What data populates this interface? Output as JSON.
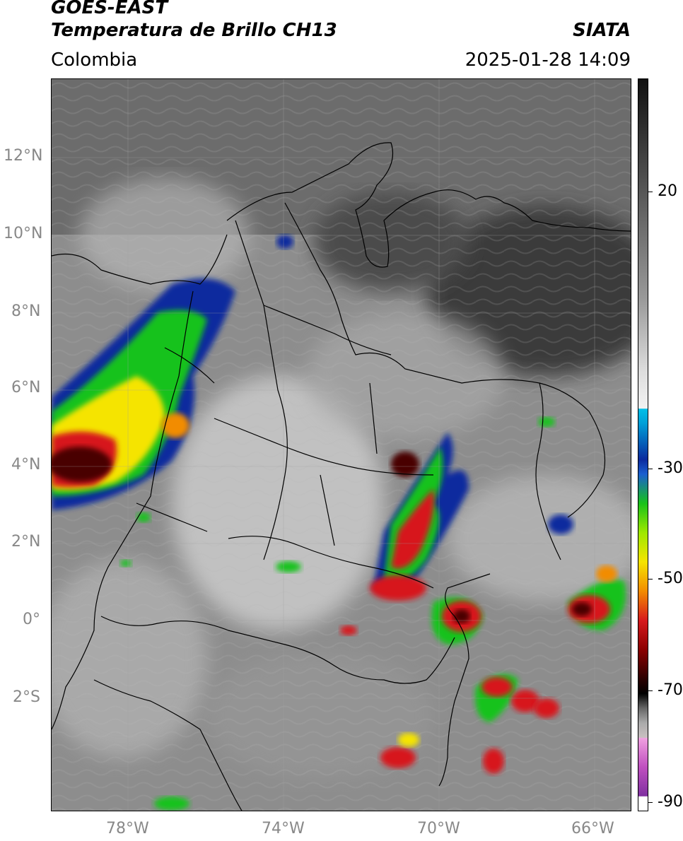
{
  "header": {
    "satellite": "GOES-EAST",
    "product": "Temperatura de Brillo CH13",
    "region": "Colombia",
    "agency": "SIATA",
    "timestamp": "2025-01-28 14:09"
  },
  "map": {
    "lat_ticks": [
      {
        "label": "12°N",
        "lat": 12
      },
      {
        "label": "10°N",
        "lat": 10
      },
      {
        "label": "8°N",
        "lat": 8
      },
      {
        "label": "6°N",
        "lat": 6
      },
      {
        "label": "4°N",
        "lat": 4
      },
      {
        "label": "2°N",
        "lat": 2
      },
      {
        "label": "0°",
        "lat": 0
      },
      {
        "label": "2°S",
        "lat": -2
      }
    ],
    "lon_ticks": [
      {
        "label": "78°W",
        "lon": -78
      },
      {
        "label": "74°W",
        "lon": -74
      },
      {
        "label": "70°W",
        "lon": -70
      },
      {
        "label": "66°W",
        "lon": -66
      }
    ],
    "extent": {
      "lon_min": -80,
      "lon_max": -65,
      "lat_min": -4.9,
      "lat_max": 14
    }
  },
  "colorbar": {
    "ticks": [
      {
        "label": "20",
        "value": 20
      },
      {
        "label": "-30",
        "value": -30
      },
      {
        "label": "-50",
        "value": -50
      },
      {
        "label": "-70",
        "value": -70
      },
      {
        "label": "-90",
        "value": -90
      }
    ],
    "colors": {
      "warm_gray_top": "#111111",
      "light_gray": "#eeeeee",
      "cyan": "#00bfe8",
      "blue": "#0b2a9e",
      "green": "#18c21a",
      "yellow": "#f5e400",
      "orange": "#f28c00",
      "red": "#d7191c",
      "dark_red": "#4a0000",
      "black": "#000000",
      "magenta": "#c050c0",
      "white": "#ffffff"
    }
  }
}
